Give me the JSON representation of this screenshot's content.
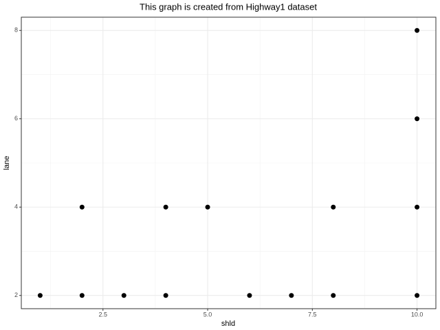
{
  "chart_data": {
    "type": "scatter",
    "title": "This graph is created from Highway1 dataset",
    "x_label": "shld",
    "y_label": "lane",
    "x": [
      1,
      2,
      2,
      3,
      4,
      4,
      5,
      6,
      7,
      8,
      8,
      10,
      10,
      10,
      10
    ],
    "values": [
      2,
      2,
      4,
      2,
      2,
      4,
      4,
      2,
      2,
      2,
      4,
      2,
      4,
      6,
      8
    ],
    "color": "#000000",
    "xlim": [
      0.55,
      10.45
    ],
    "xticks": [
      2.5,
      {
        "value": 5,
        "label": "5.0"
      },
      7.5,
      {
        "value": 10,
        "label": "10.0"
      }
    ],
    "ylim": [
      1.7,
      8.3
    ],
    "yticks": [
      2,
      4,
      6,
      8
    ],
    "grid": true
  }
}
